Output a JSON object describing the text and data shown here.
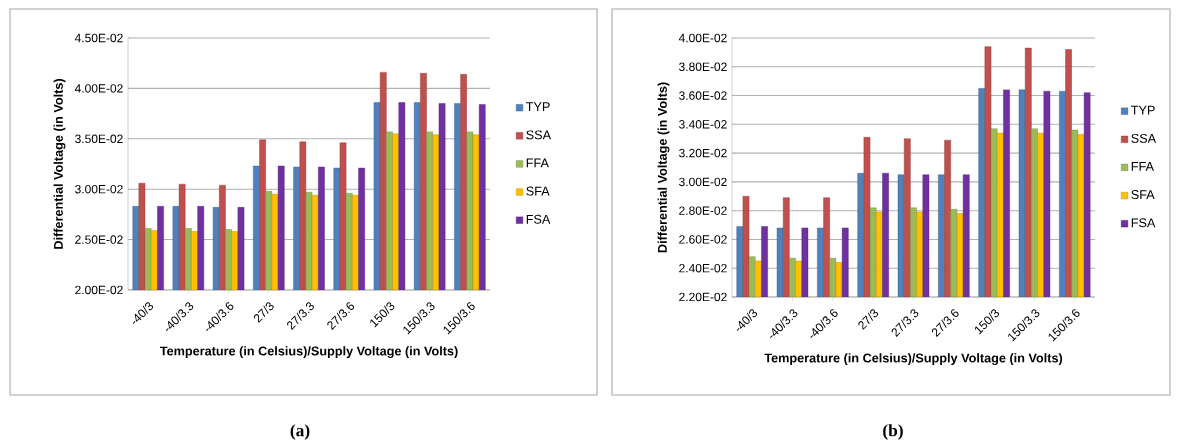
{
  "chart_data": [
    {
      "type": "bar",
      "xlabel": "Temperature (in Celsius)/Supply  Voltage (in Volts)",
      "ylabel": "Differential Voltage (in Volts)",
      "categories": [
        "-40/3",
        "-40/3.3",
        "-40/3.6",
        "27/3",
        "27/3.3",
        "27/3.6",
        "150/3",
        "150/3.3",
        "150/3.6"
      ],
      "series": [
        {
          "name": "TYP",
          "color": "#4f81bd",
          "values": [
            0.0283,
            0.0283,
            0.0282,
            0.0323,
            0.0322,
            0.0321,
            0.0386,
            0.0386,
            0.0385
          ]
        },
        {
          "name": "SSA",
          "color": "#c0504d",
          "values": [
            0.0306,
            0.0305,
            0.0304,
            0.0349,
            0.0347,
            0.0346,
            0.0416,
            0.0415,
            0.0414
          ]
        },
        {
          "name": "FFA",
          "color": "#9bbb59",
          "values": [
            0.0261,
            0.0261,
            0.026,
            0.0298,
            0.0297,
            0.0296,
            0.0357,
            0.0357,
            0.0357
          ]
        },
        {
          "name": "SFA",
          "color": "#ffc000",
          "values": [
            0.0259,
            0.0258,
            0.0258,
            0.0295,
            0.0294,
            0.0294,
            0.0355,
            0.0354,
            0.0354
          ]
        },
        {
          "name": "FSA",
          "color": "#7030a0",
          "values": [
            0.0283,
            0.0283,
            0.0282,
            0.0323,
            0.0322,
            0.0321,
            0.0386,
            0.0385,
            0.0384
          ]
        }
      ],
      "ylim": [
        0.02,
        0.045
      ],
      "yticks": [
        {
          "value": 0.02,
          "label": "2.00E-02"
        },
        {
          "value": 0.025,
          "label": "2.50E-02"
        },
        {
          "value": 0.03,
          "label": "3.00E-02"
        },
        {
          "value": 0.035,
          "label": "3.50E-02"
        },
        {
          "value": 0.04,
          "label": "4.00E-02"
        },
        {
          "value": 0.045,
          "label": "4.50E-02"
        }
      ],
      "grid": "y",
      "legend": "right",
      "annotations": [
        "(a)"
      ]
    },
    {
      "type": "bar",
      "xlabel": "Temperature (in Celsius)/Supply  Voltage (in Volts)",
      "ylabel": "Differential Voltage (in Volts)",
      "categories": [
        "-40/3",
        "-40/3.3",
        "-40/3.6",
        "27/3",
        "27/3.3",
        "27/3.6",
        "150/3",
        "150/3.3",
        "150/3.6"
      ],
      "series": [
        {
          "name": "TYP",
          "color": "#4f81bd",
          "values": [
            0.0269,
            0.0268,
            0.0268,
            0.0306,
            0.0305,
            0.0305,
            0.0365,
            0.0364,
            0.0363
          ]
        },
        {
          "name": "SSA",
          "color": "#c0504d",
          "values": [
            0.029,
            0.0289,
            0.0289,
            0.0331,
            0.033,
            0.0329,
            0.0394,
            0.0393,
            0.0392
          ]
        },
        {
          "name": "FFA",
          "color": "#9bbb59",
          "values": [
            0.0248,
            0.0247,
            0.0247,
            0.0282,
            0.0282,
            0.0281,
            0.0337,
            0.0337,
            0.0336
          ]
        },
        {
          "name": "SFA",
          "color": "#ffc000",
          "values": [
            0.0245,
            0.0245,
            0.0244,
            0.0279,
            0.0279,
            0.0278,
            0.0334,
            0.0334,
            0.0333
          ]
        },
        {
          "name": "FSA",
          "color": "#7030a0",
          "values": [
            0.0269,
            0.0268,
            0.0268,
            0.0306,
            0.0305,
            0.0305,
            0.0364,
            0.0363,
            0.0362
          ]
        }
      ],
      "ylim": [
        0.022,
        0.04
      ],
      "yticks": [
        {
          "value": 0.022,
          "label": "2.20E-02"
        },
        {
          "value": 0.024,
          "label": "2.40E-02"
        },
        {
          "value": 0.026,
          "label": "2.60E-02"
        },
        {
          "value": 0.028,
          "label": "2.80E-02"
        },
        {
          "value": 0.03,
          "label": "3.00E-02"
        },
        {
          "value": 0.032,
          "label": "3.20E-02"
        },
        {
          "value": 0.034,
          "label": "3.40E-02"
        },
        {
          "value": 0.036,
          "label": "3.60E-02"
        },
        {
          "value": 0.038,
          "label": "3.80E-02"
        },
        {
          "value": 0.04,
          "label": "4.00E-02"
        }
      ],
      "grid": "y",
      "legend": "right",
      "annotations": [
        "(b)"
      ]
    }
  ]
}
